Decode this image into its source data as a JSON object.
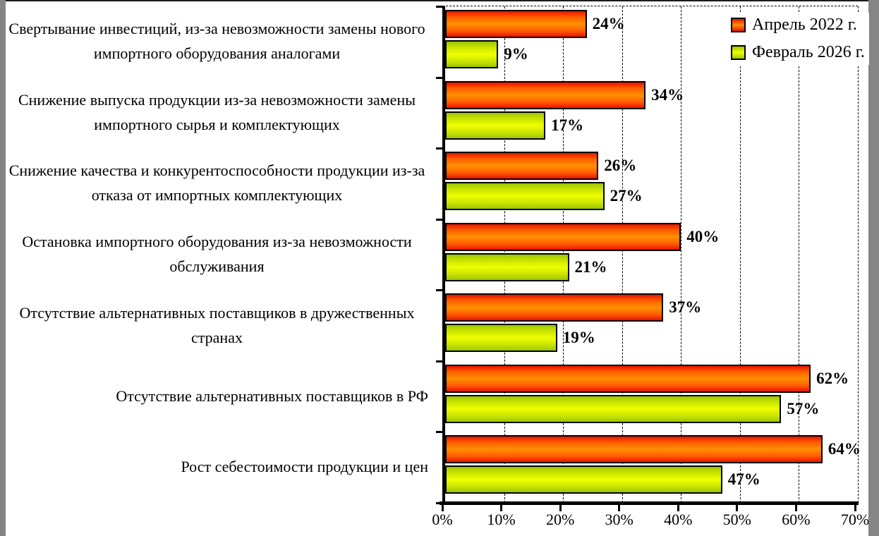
{
  "chart_data": {
    "type": "bar",
    "orientation": "horizontal",
    "title": "",
    "categories": [
      "Свертывание инвестиций, из-за невозможности замены нового импортного оборудования аналогами",
      "Снижение выпуска продукции из-за невозможности замены импортного сырья и комплектующих",
      "Снижение качества и конкурентоспособности продукции из-за отказа от импортных комплектующих",
      "Остановка импортного оборудования из-за невозможности обслуживания",
      "Отсутствие альтернативных поставщиков в дружественных странах",
      "Отсутствие альтернативных поставщиков в РФ",
      "Рост себестоимости продукции и цен"
    ],
    "series": [
      {
        "name": "Апрель 2022 г.",
        "values": [
          24,
          34,
          26,
          40,
          37,
          62,
          64
        ],
        "edge_color": "#e81400",
        "mid_color": "#ff5a00",
        "center_color": "#ff9100"
      },
      {
        "name": "Февраль 2026 г.",
        "values": [
          9,
          17,
          27,
          21,
          19,
          57,
          47
        ],
        "edge_color": "#9cc600",
        "mid_color": "#c9e300",
        "center_color": "#eeff00"
      }
    ],
    "value_suffix": "%",
    "x_ticks": [
      "0%",
      "10%",
      "20%",
      "30%",
      "40%",
      "50%",
      "60%",
      "70%"
    ],
    "xlim": [
      0,
      70
    ],
    "grid": "vertical-dashed",
    "legend_position": "top-right-inside",
    "colors": {
      "bar_border": "#000000",
      "axis": "#000000",
      "grid": "#000000",
      "frame_side": "#858585",
      "background": "#ffffff"
    }
  }
}
